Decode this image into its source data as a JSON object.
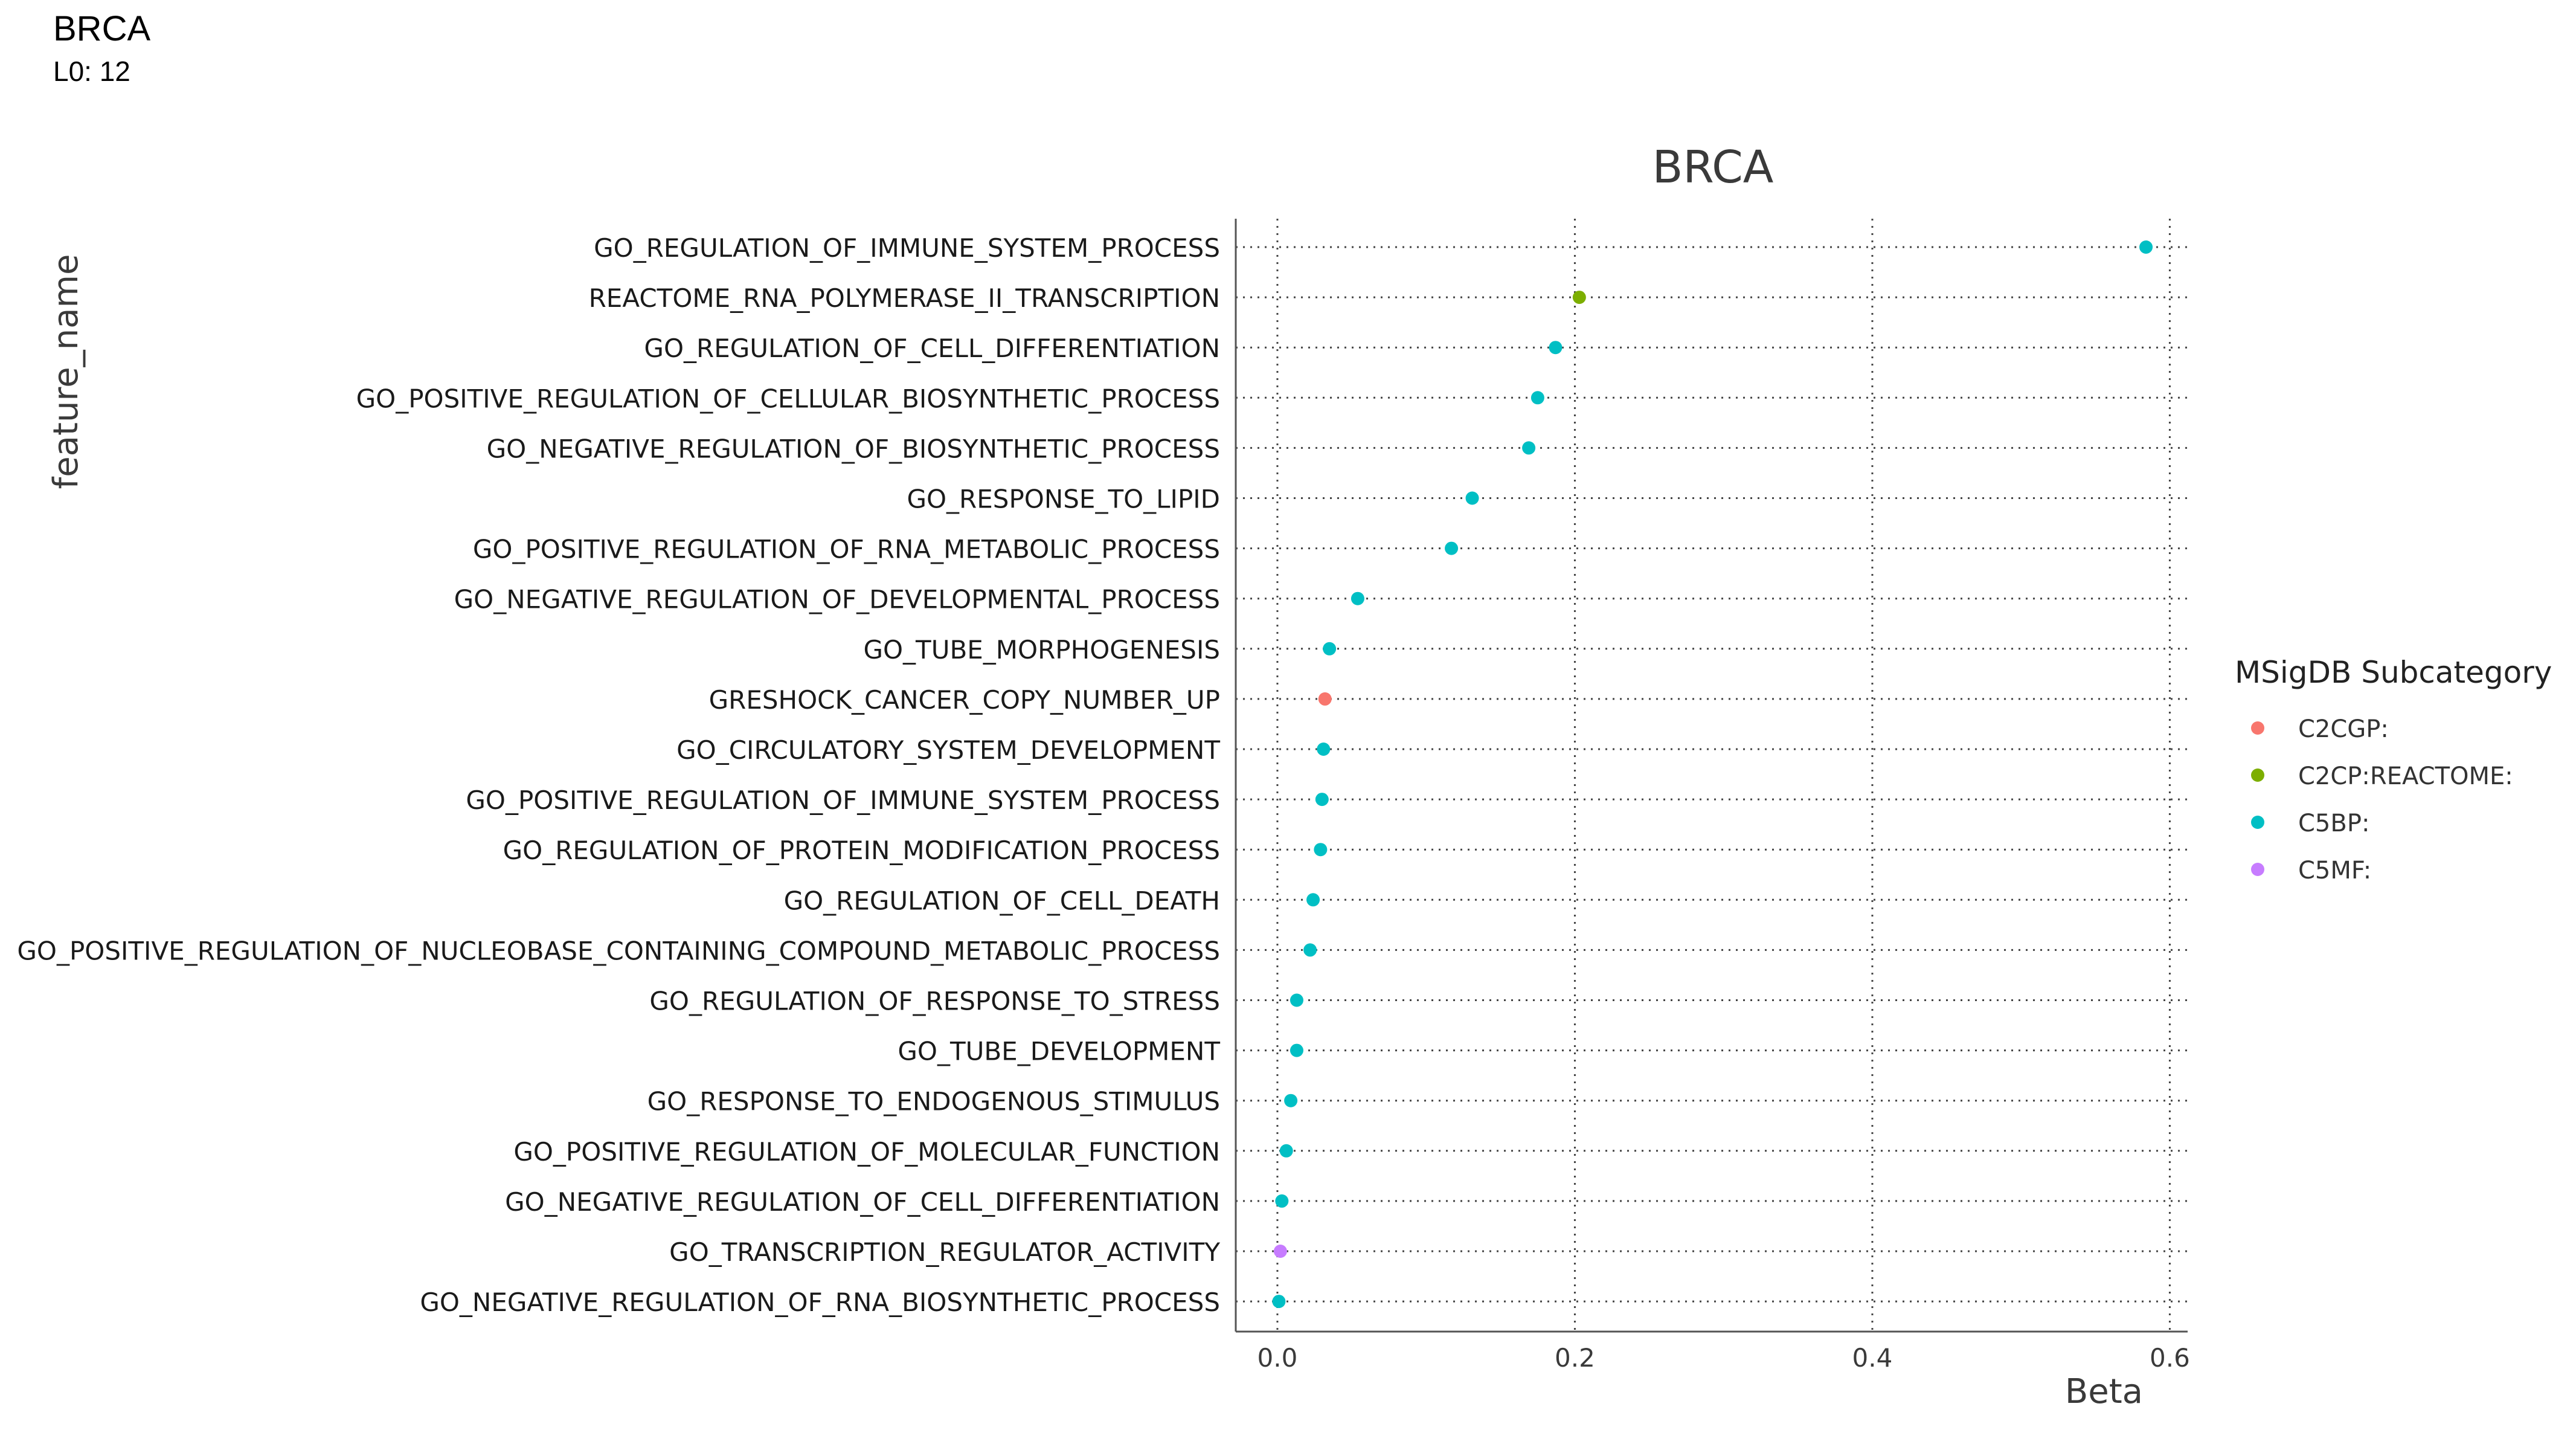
{
  "page": {
    "title": "BRCA",
    "subtitle": "L0: 12"
  },
  "chart_data": {
    "type": "scatter",
    "title": "BRCA",
    "xlabel": "Beta",
    "ylabel": "feature_name",
    "xlim": [
      -0.028,
      0.612
    ],
    "xticks": [
      0.0,
      0.2,
      0.4,
      0.6
    ],
    "xtick_labels": [
      "0.0",
      "0.2",
      "0.4",
      "0.6"
    ],
    "grid": true,
    "legend": {
      "title": "MSigDB Subcategory",
      "placement": "right",
      "entries": [
        {
          "label": "C2CGP:",
          "color": "#F8766D"
        },
        {
          "label": "C2CP:REACTOME:",
          "color": "#7CAE00"
        },
        {
          "label": "C5BP:",
          "color": "#00BFC4"
        },
        {
          "label": "C5MF:",
          "color": "#C77CFF"
        }
      ]
    },
    "points": [
      {
        "feature": "GO_REGULATION_OF_IMMUNE_SYSTEM_PROCESS",
        "beta": 0.584,
        "category": "C5BP:"
      },
      {
        "feature": "REACTOME_RNA_POLYMERASE_II_TRANSCRIPTION",
        "beta": 0.203,
        "category": "C2CP:REACTOME:"
      },
      {
        "feature": "GO_REGULATION_OF_CELL_DIFFERENTIATION",
        "beta": 0.187,
        "category": "C5BP:"
      },
      {
        "feature": "GO_POSITIVE_REGULATION_OF_CELLULAR_BIOSYNTHETIC_PROCESS",
        "beta": 0.175,
        "category": "C5BP:"
      },
      {
        "feature": "GO_NEGATIVE_REGULATION_OF_BIOSYNTHETIC_PROCESS",
        "beta": 0.169,
        "category": "C5BP:"
      },
      {
        "feature": "GO_RESPONSE_TO_LIPID",
        "beta": 0.131,
        "category": "C5BP:"
      },
      {
        "feature": "GO_POSITIVE_REGULATION_OF_RNA_METABOLIC_PROCESS",
        "beta": 0.117,
        "category": "C5BP:"
      },
      {
        "feature": "GO_NEGATIVE_REGULATION_OF_DEVELOPMENTAL_PROCESS",
        "beta": 0.054,
        "category": "C5BP:"
      },
      {
        "feature": "GO_TUBE_MORPHOGENESIS",
        "beta": 0.035,
        "category": "C5BP:"
      },
      {
        "feature": "GRESHOCK_CANCER_COPY_NUMBER_UP",
        "beta": 0.032,
        "category": "C2CGP:"
      },
      {
        "feature": "GO_CIRCULATORY_SYSTEM_DEVELOPMENT",
        "beta": 0.031,
        "category": "C5BP:"
      },
      {
        "feature": "GO_POSITIVE_REGULATION_OF_IMMUNE_SYSTEM_PROCESS",
        "beta": 0.03,
        "category": "C5BP:"
      },
      {
        "feature": "GO_REGULATION_OF_PROTEIN_MODIFICATION_PROCESS",
        "beta": 0.029,
        "category": "C5BP:"
      },
      {
        "feature": "GO_REGULATION_OF_CELL_DEATH",
        "beta": 0.024,
        "category": "C5BP:"
      },
      {
        "feature": "GO_POSITIVE_REGULATION_OF_NUCLEOBASE_CONTAINING_COMPOUND_METABOLIC_PROCESS",
        "beta": 0.022,
        "category": "C5BP:"
      },
      {
        "feature": "GO_REGULATION_OF_RESPONSE_TO_STRESS",
        "beta": 0.013,
        "category": "C5BP:"
      },
      {
        "feature": "GO_TUBE_DEVELOPMENT",
        "beta": 0.013,
        "category": "C5BP:"
      },
      {
        "feature": "GO_RESPONSE_TO_ENDOGENOUS_STIMULUS",
        "beta": 0.009,
        "category": "C5BP:"
      },
      {
        "feature": "GO_POSITIVE_REGULATION_OF_MOLECULAR_FUNCTION",
        "beta": 0.006,
        "category": "C5BP:"
      },
      {
        "feature": "GO_NEGATIVE_REGULATION_OF_CELL_DIFFERENTIATION",
        "beta": 0.003,
        "category": "C5BP:"
      },
      {
        "feature": "GO_TRANSCRIPTION_REGULATOR_ACTIVITY",
        "beta": 0.002,
        "category": "C5MF:"
      },
      {
        "feature": "GO_NEGATIVE_REGULATION_OF_RNA_BIOSYNTHETIC_PROCESS",
        "beta": 0.001,
        "category": "C5BP:"
      }
    ]
  }
}
